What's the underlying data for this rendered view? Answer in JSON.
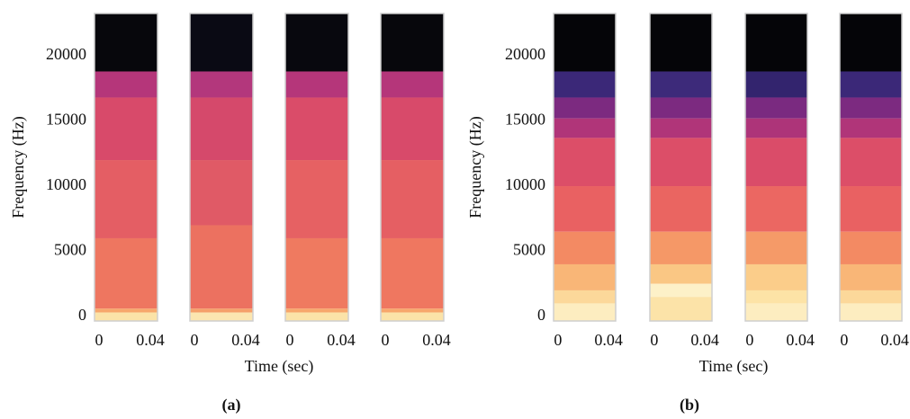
{
  "chart_data": [
    {
      "type": "spectrogram",
      "label": "(a)",
      "xlabel": "Time (sec)",
      "ylabel": "Frequency (Hz)",
      "xlim": [
        -0.0035,
        0.0456
      ],
      "xticks": [
        0,
        0.04
      ],
      "ylim": [
        -350,
        23250
      ],
      "yticks": [
        0,
        5000,
        10000,
        15000,
        20000
      ],
      "spectrograms": [
        {
          "edges": [
            23250,
            18800,
            16800,
            12000,
            6000,
            600,
            300,
            -350
          ],
          "colors": [
            "#07070c",
            "#b5367a",
            "#d84a6a",
            "#e45e64",
            "#ee7660",
            "#f7a76c",
            "#fbe3a8"
          ]
        },
        {
          "edges": [
            23250,
            18800,
            16800,
            12000,
            7000,
            600,
            300,
            -350
          ],
          "colors": [
            "#0a0a14",
            "#b3377c",
            "#d5496b",
            "#e05a66",
            "#ec7160",
            "#f5a06a",
            "#fbe6b0"
          ]
        },
        {
          "edges": [
            23250,
            18800,
            16800,
            12000,
            6000,
            600,
            300,
            -350
          ],
          "colors": [
            "#08080e",
            "#b5367a",
            "#da4c69",
            "#e66163",
            "#ef7a60",
            "#f7a76c",
            "#fbe3a8"
          ]
        },
        {
          "edges": [
            23250,
            18800,
            16800,
            12000,
            6000,
            600,
            300,
            -350
          ],
          "colors": [
            "#07070c",
            "#b5367a",
            "#d84a6a",
            "#e55f63",
            "#ef7760",
            "#f7a76c",
            "#fbe3a8"
          ]
        }
      ]
    },
    {
      "type": "spectrogram",
      "label": "(b)",
      "xlabel": "Time (sec)",
      "ylabel": "Frequency (Hz)",
      "xlim": [
        -0.0035,
        0.0456
      ],
      "xticks": [
        0,
        0.04
      ],
      "ylim": [
        -350,
        23250
      ],
      "yticks": [
        0,
        5000,
        10000,
        15000,
        20000
      ],
      "spectrograms": [
        {
          "edges": [
            23250,
            18800,
            16800,
            15200,
            13700,
            10000,
            6500,
            4000,
            2000,
            1000,
            -350
          ],
          "colors": [
            "#050508",
            "#3b2878",
            "#7c2a80",
            "#b03579",
            "#dc4e68",
            "#e96162",
            "#f38a63",
            "#f9b677",
            "#fcd89a",
            "#fdedc0"
          ]
        },
        {
          "edges": [
            23250,
            18800,
            16800,
            15200,
            13700,
            10000,
            6500,
            4000,
            2500,
            1500,
            -350
          ],
          "colors": [
            "#050508",
            "#3d2a7a",
            "#7c2a80",
            "#b03579",
            "#dc4e68",
            "#ea6561",
            "#f59867",
            "#fac784",
            "#fdf1c8",
            "#fce3a8"
          ]
        },
        {
          "edges": [
            23250,
            18800,
            16800,
            15200,
            13700,
            10000,
            6500,
            4000,
            2000,
            1000,
            -350
          ],
          "colors": [
            "#050508",
            "#33246e",
            "#7a2a80",
            "#ad3479",
            "#da4c69",
            "#eb6762",
            "#f59a68",
            "#fbcd8a",
            "#fde3a6",
            "#fdedc0"
          ]
        },
        {
          "edges": [
            23250,
            18800,
            16800,
            15200,
            13700,
            10000,
            6500,
            4000,
            2000,
            1000,
            -350
          ],
          "colors": [
            "#050508",
            "#3b2878",
            "#7c2a80",
            "#b03579",
            "#dc4e68",
            "#e96162",
            "#f38a63",
            "#f9b677",
            "#fcd89a",
            "#fdedc0"
          ]
        }
      ]
    }
  ]
}
